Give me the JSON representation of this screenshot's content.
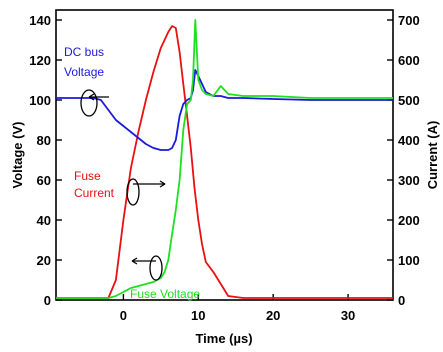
{
  "chart_data": {
    "type": "line",
    "title": "",
    "xlabel": "Time (µs)",
    "ylabel": "Voltage (V)",
    "y2label": "Current (A)",
    "xlim": [
      -9,
      36
    ],
    "ylim": [
      0,
      145
    ],
    "y2lim": [
      0,
      725
    ],
    "x_ticks": [
      "0",
      "10",
      "20",
      "30"
    ],
    "y_ticks": [
      "0",
      "20",
      "40",
      "60",
      "80",
      "100",
      "120",
      "140"
    ],
    "y2_ticks": [
      "0",
      "100",
      "200",
      "300",
      "400",
      "500",
      "600",
      "700"
    ],
    "grid": false,
    "legend": "none",
    "series": [
      {
        "name": "DC bus Voltage",
        "axis": "left",
        "color": "#1a1adb",
        "x": [
          -9,
          -4,
          -3,
          -2,
          -1,
          0,
          1,
          2,
          3,
          4,
          5,
          6,
          6.5,
          7,
          7.5,
          8,
          8.5,
          9,
          9.3,
          9.6,
          10,
          11,
          12,
          13,
          14,
          16,
          20,
          25,
          30,
          36
        ],
        "y": [
          101,
          101,
          100,
          95,
          90,
          87,
          84,
          81,
          78,
          76,
          75,
          75,
          76,
          80,
          92,
          98,
          100,
          101,
          105,
          115,
          112,
          104,
          102,
          102,
          101,
          101,
          100.5,
          100,
          100,
          100
        ]
      },
      {
        "name": "Fuse Voltage",
        "axis": "left",
        "color": "#1ee01e",
        "x": [
          -9,
          -2,
          -1,
          0,
          1,
          2,
          3,
          4,
          5,
          5.5,
          6,
          6.5,
          7,
          7.5,
          8,
          8.5,
          9,
          9.3,
          9.6,
          10,
          10.5,
          11,
          12,
          13,
          14,
          16,
          20,
          25,
          30,
          36
        ],
        "y": [
          1,
          1,
          2,
          4,
          6,
          7,
          8,
          9,
          11,
          14,
          20,
          33,
          45,
          60,
          85,
          98,
          100,
          110,
          140,
          110,
          105,
          103,
          102,
          107,
          103,
          102,
          102,
          101,
          101,
          101
        ]
      },
      {
        "name": "Fuse Current",
        "axis": "right",
        "color": "#e81010",
        "x": [
          -9,
          -2,
          -1,
          0,
          1,
          2,
          3,
          4,
          5,
          6,
          6.5,
          7,
          7.5,
          8,
          8.5,
          9,
          9.5,
          10,
          10.5,
          11,
          12,
          13,
          14,
          16,
          20,
          25,
          30,
          36
        ],
        "y": [
          5,
          5,
          50,
          200,
          330,
          420,
          500,
          570,
          630,
          670,
          685,
          680,
          620,
          540,
          460,
          380,
          280,
          200,
          140,
          95,
          70,
          40,
          10,
          5,
          5,
          5,
          5,
          5
        ]
      }
    ],
    "annotations": [
      {
        "text": "DC bus",
        "color": "#1a1adb"
      },
      {
        "text": "Voltage",
        "color": "#1a1adb"
      },
      {
        "text": "Fuse",
        "color": "#e81010"
      },
      {
        "text": "Current",
        "color": "#e81010"
      },
      {
        "text": "Fuse Voltage",
        "color": "#1ee01e"
      }
    ]
  }
}
